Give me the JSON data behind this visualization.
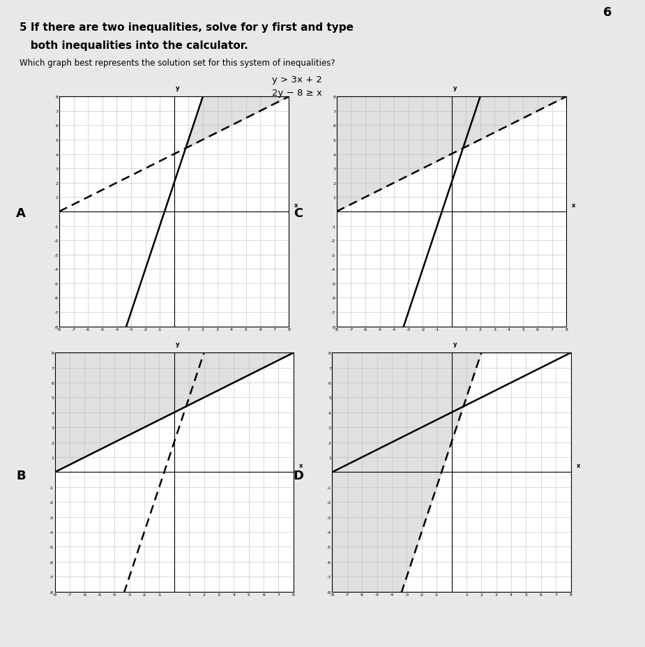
{
  "page_bg": "#f2f2f2",
  "content_bg": "#ffffff",
  "title1": "5 If there are two inequalities, solve for y first and type",
  "title2": "   both inequalities into the calculator.",
  "subtitle": "Which graph best represents the solution set for this system of inequalities?",
  "eq1": "y > 3x + 2",
  "eq2": "2y − 8 ≥ x",
  "corner_label": "6",
  "graph_labels": [
    "A",
    "C",
    "B",
    "D"
  ],
  "xlim": [
    -8,
    8
  ],
  "ylim": [
    -8,
    8
  ],
  "shade_color": "#c8c8c8",
  "shade_alpha": 0.55,
  "line_color": "#000000",
  "grid_color": "#bbbbbb",
  "line1_slope": 3,
  "line1_intercept": 2,
  "line2_slope": 0.5,
  "line2_intercept": 4,
  "x_intersect": 0.8,
  "y_intersect": 4.4
}
